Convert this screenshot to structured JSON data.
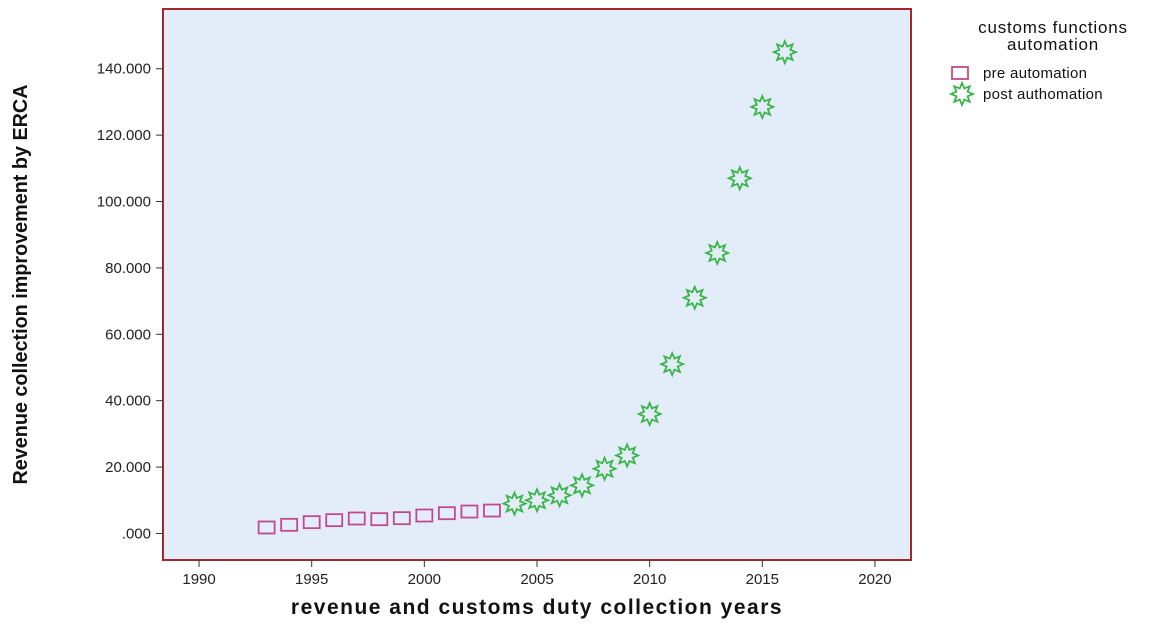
{
  "chart_data": {
    "type": "scatter",
    "title": "",
    "xlabel": "revenue and customs duty collection years",
    "ylabel": "Revenue collection improvement by ERCA",
    "xlim": [
      1988.4,
      2021.6
    ],
    "ylim": [
      -8000,
      158000
    ],
    "x_ticks": [
      1990,
      1995,
      2000,
      2005,
      2010,
      2015,
      2020
    ],
    "x_tick_labels": [
      "1990",
      "1995",
      "2000",
      "2005",
      "2010",
      "2015",
      "2020"
    ],
    "y_ticks": [
      0,
      20000,
      40000,
      60000,
      80000,
      100000,
      120000,
      140000
    ],
    "y_tick_labels": [
      ".000",
      "20.000",
      "40.000",
      "60.000",
      "80.000",
      "100.000",
      "120.000",
      "140.000"
    ],
    "grid": false,
    "plot_background": "#e3edf9",
    "plot_border_color": "#a0282d",
    "legend": {
      "title_lines": [
        "customs functions",
        "automation"
      ],
      "position": "top-right, outside plot"
    },
    "series": [
      {
        "name": "pre automation",
        "marker": "square",
        "color": "#c04a8e",
        "x": [
          1993,
          1994,
          1995,
          1996,
          1997,
          1998,
          1999,
          2000,
          2001,
          2002,
          2003
        ],
        "y": [
          1800,
          2600,
          3400,
          4000,
          4500,
          4300,
          4600,
          5400,
          6100,
          6600,
          6900
        ]
      },
      {
        "name": "post authomation",
        "marker": "star",
        "color": "#3ab54a",
        "x": [
          2004,
          2005,
          2006,
          2007,
          2008,
          2009,
          2010,
          2011,
          2012,
          2013,
          2014,
          2015,
          2016
        ],
        "y": [
          9000,
          10000,
          11500,
          14500,
          19500,
          23500,
          36000,
          51000,
          71000,
          84500,
          107000,
          128500,
          145000
        ]
      }
    ]
  }
}
